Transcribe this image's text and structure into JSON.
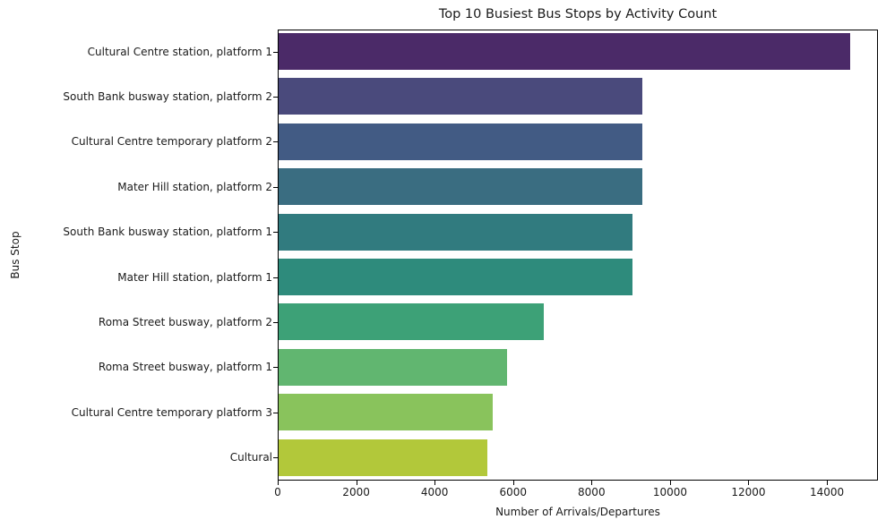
{
  "chart_data": {
    "type": "bar",
    "orientation": "horizontal",
    "title": "Top 10 Busiest Bus Stops by Activity Count",
    "xlabel": "Number of Arrivals/Departures",
    "ylabel": "Bus Stop",
    "xlim": [
      0,
      15300
    ],
    "xticks": [
      0,
      2000,
      4000,
      6000,
      8000,
      10000,
      12000,
      14000
    ],
    "xtick_labels": [
      "0",
      "2000",
      "4000",
      "6000",
      "8000",
      "10000",
      "12000",
      "14000"
    ],
    "grid": false,
    "legend": null,
    "categories": [
      "Cultural Centre station, platform 1",
      "South Bank busway station, platform 2",
      "Cultural Centre temporary platform 2",
      "Mater Hill station, platform 2",
      "South Bank busway station, platform 1",
      "Mater Hill station, platform 1",
      "Roma Street busway, platform 2",
      "Roma Street busway, platform 1",
      "Cultural Centre temporary platform 3",
      "Cultural"
    ],
    "values": [
      14560,
      9280,
      9280,
      9280,
      9030,
      9030,
      6750,
      5820,
      5450,
      5320
    ],
    "colors": [
      "#4b2a68",
      "#4a4a7c",
      "#425b84",
      "#3a6d81",
      "#317b7f",
      "#2e8b7c",
      "#3da177",
      "#61b670",
      "#89c35c",
      "#b2c83a"
    ]
  }
}
